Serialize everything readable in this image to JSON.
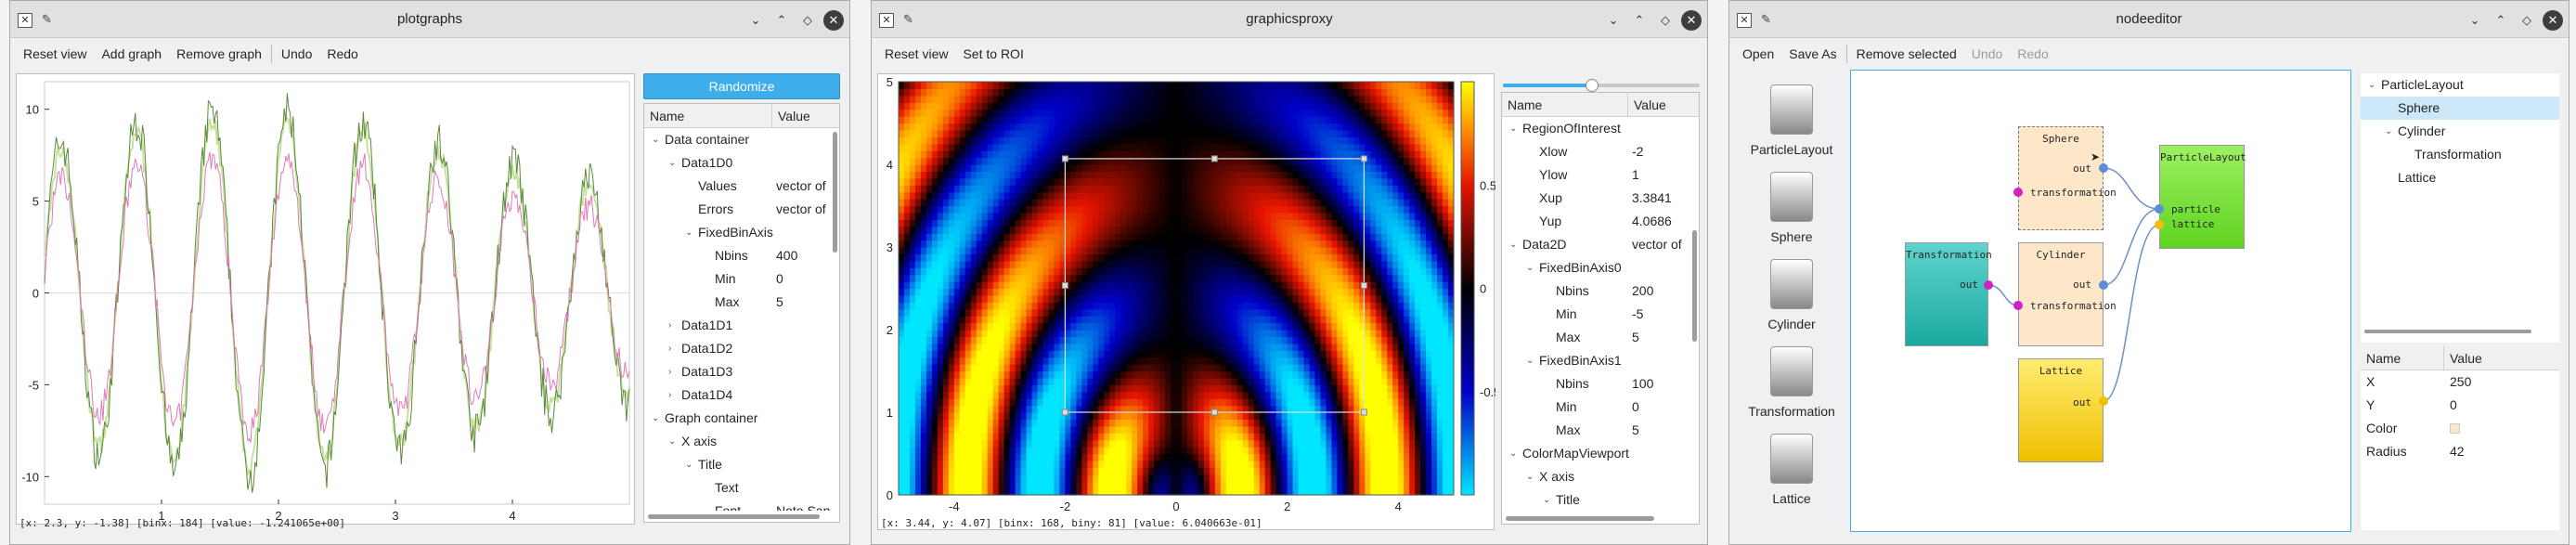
{
  "window1": {
    "title": "plotgraphs",
    "toolbar": [
      "Reset view",
      "Add graph",
      "Remove graph",
      "Undo",
      "Redo"
    ],
    "randomize_label": "Randomize",
    "tree_headers": [
      "Name",
      "Value"
    ],
    "tree_rows": [
      {
        "name": "Data container",
        "value": "",
        "indent": 0,
        "arrow": "down"
      },
      {
        "name": "Data1D0",
        "value": "",
        "indent": 1,
        "arrow": "down"
      },
      {
        "name": "Values",
        "value": "vector of",
        "indent": 2,
        "arrow": ""
      },
      {
        "name": "Errors",
        "value": "vector of",
        "indent": 2,
        "arrow": ""
      },
      {
        "name": "FixedBinAxis",
        "value": "",
        "indent": 2,
        "arrow": "down"
      },
      {
        "name": "Nbins",
        "value": "400",
        "indent": 3,
        "arrow": ""
      },
      {
        "name": "Min",
        "value": "0",
        "indent": 3,
        "arrow": ""
      },
      {
        "name": "Max",
        "value": "5",
        "indent": 3,
        "arrow": ""
      },
      {
        "name": "Data1D1",
        "value": "",
        "indent": 1,
        "arrow": "right"
      },
      {
        "name": "Data1D2",
        "value": "",
        "indent": 1,
        "arrow": "right"
      },
      {
        "name": "Data1D3",
        "value": "",
        "indent": 1,
        "arrow": "right"
      },
      {
        "name": "Data1D4",
        "value": "",
        "indent": 1,
        "arrow": "right"
      },
      {
        "name": "Graph container",
        "value": "",
        "indent": 0,
        "arrow": "down"
      },
      {
        "name": "X axis",
        "value": "",
        "indent": 1,
        "arrow": "down"
      },
      {
        "name": "Title",
        "value": "",
        "indent": 2,
        "arrow": "down"
      },
      {
        "name": "Text",
        "value": "",
        "indent": 3,
        "arrow": ""
      },
      {
        "name": "Font",
        "value": "Noto Sans",
        "indent": 3,
        "arrow": ""
      }
    ],
    "status": "[x: 2.3, y: -1.38] [binx: 184] [value: -1.241065e+00]"
  },
  "window2": {
    "title": "graphicsproxy",
    "toolbar": [
      "Reset view",
      "Set to ROI"
    ],
    "tree_headers": [
      "Name",
      "Value"
    ],
    "tree_rows": [
      {
        "name": "RegionOfInterest",
        "value": "",
        "indent": 0,
        "arrow": "down"
      },
      {
        "name": "Xlow",
        "value": "-2",
        "indent": 1,
        "arrow": ""
      },
      {
        "name": "Ylow",
        "value": "1",
        "indent": 1,
        "arrow": ""
      },
      {
        "name": "Xup",
        "value": "3.3841",
        "indent": 1,
        "arrow": ""
      },
      {
        "name": "Yup",
        "value": "4.0686",
        "indent": 1,
        "arrow": ""
      },
      {
        "name": "Data2D",
        "value": "vector of",
        "indent": 0,
        "arrow": "down"
      },
      {
        "name": "FixedBinAxis0",
        "value": "",
        "indent": 1,
        "arrow": "down"
      },
      {
        "name": "Nbins",
        "value": "200",
        "indent": 2,
        "arrow": ""
      },
      {
        "name": "Min",
        "value": "-5",
        "indent": 2,
        "arrow": ""
      },
      {
        "name": "Max",
        "value": "5",
        "indent": 2,
        "arrow": ""
      },
      {
        "name": "FixedBinAxis1",
        "value": "",
        "indent": 1,
        "arrow": "down"
      },
      {
        "name": "Nbins",
        "value": "100",
        "indent": 2,
        "arrow": ""
      },
      {
        "name": "Min",
        "value": "0",
        "indent": 2,
        "arrow": ""
      },
      {
        "name": "Max",
        "value": "5",
        "indent": 2,
        "arrow": ""
      },
      {
        "name": "ColorMapViewport",
        "value": "",
        "indent": 0,
        "arrow": "down"
      },
      {
        "name": "X axis",
        "value": "",
        "indent": 1,
        "arrow": "down"
      },
      {
        "name": "Title",
        "value": "",
        "indent": 2,
        "arrow": "down"
      }
    ],
    "slider_value": 0.45,
    "status": "[x: 3.44, y: 4.07] [binx: 168, biny: 81] [value: 6.040663e-01]"
  },
  "window3": {
    "title": "nodeeditor",
    "toolbar": [
      "Open",
      "Save As",
      "Remove selected",
      "Undo",
      "Redo"
    ],
    "palette": [
      "ParticleLayout",
      "Sphere",
      "Cylinder",
      "Transformation",
      "Lattice"
    ],
    "nodes": {
      "sphere": {
        "title": "Sphere",
        "ports": [
          "out",
          "transformation"
        ]
      },
      "cylinder": {
        "title": "Cylinder",
        "ports": [
          "out",
          "transformation"
        ]
      },
      "transformation": {
        "title": "Transformation",
        "ports": [
          "out"
        ]
      },
      "lattice": {
        "title": "Lattice",
        "ports": [
          "out"
        ]
      },
      "particlelayout": {
        "title": "ParticleLayout",
        "ports": [
          "particle",
          "lattice"
        ]
      }
    },
    "tree": [
      {
        "name": "ParticleLayout",
        "indent": 0,
        "arrow": "down"
      },
      {
        "name": "Sphere",
        "indent": 1,
        "arrow": "",
        "selected": true
      },
      {
        "name": "Cylinder",
        "indent": 1,
        "arrow": "down"
      },
      {
        "name": "Transformation",
        "indent": 2,
        "arrow": ""
      },
      {
        "name": "Lattice",
        "indent": 1,
        "arrow": ""
      }
    ],
    "prop_headers": [
      "Name",
      "Value"
    ],
    "props": [
      {
        "name": "X",
        "value": "250"
      },
      {
        "name": "Y",
        "value": "0"
      },
      {
        "name": "Color",
        "value": ""
      },
      {
        "name": "Radius",
        "value": "42"
      }
    ],
    "color_swatch": "#fde7c8"
  },
  "chart_data": [
    {
      "type": "line",
      "title": "",
      "xticks": [
        "1",
        "2",
        "3",
        "4"
      ],
      "yticks": [
        "10",
        "5",
        "0",
        "-5",
        "-10"
      ],
      "xlim": [
        0,
        5
      ],
      "ylim": [
        -11.5,
        11.5
      ],
      "series_colors": [
        "#5a8a3a",
        "#c8e0a0",
        "#e07ab8"
      ]
    },
    {
      "type": "heatmap",
      "title": "",
      "xticks": [
        "-4",
        "-2",
        "0",
        "2",
        "4"
      ],
      "yticks": [
        "5",
        "4",
        "3",
        "2",
        "1",
        "0"
      ],
      "xlim": [
        -5,
        5
      ],
      "ylim": [
        0,
        5
      ],
      "colorbar_ticks": [
        "0.5",
        "0",
        "-0.5"
      ],
      "roi": {
        "xlow": -2,
        "ylow": 1,
        "xup": 3.3841,
        "yup": 4.0686
      }
    }
  ]
}
